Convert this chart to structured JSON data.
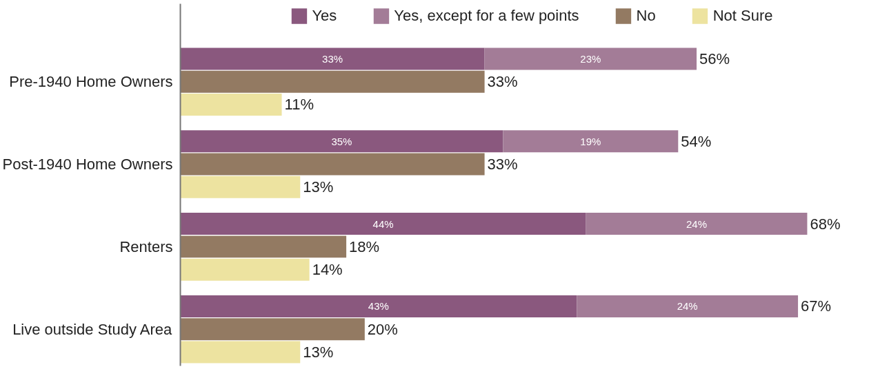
{
  "chart_data": {
    "type": "bar",
    "orientation": "horizontal",
    "stacked": true,
    "legend": "top",
    "grid": false,
    "categories": [
      null,
      "Pre-1940 Home Owners",
      null,
      null,
      "Post-1940 Home Owners",
      null,
      null,
      "Renters",
      null,
      null,
      "Live outside Study Area",
      null
    ],
    "series": [
      {
        "name": "Yes",
        "color": "#8a587e",
        "values": [
          33,
          null,
          null,
          35,
          null,
          null,
          44,
          null,
          null,
          43,
          null,
          null
        ],
        "value_labels": [
          "33%",
          null,
          null,
          "35%",
          null,
          null,
          "44%",
          null,
          null,
          "43%",
          null,
          null
        ]
      },
      {
        "name": "Yes, except for a few points",
        "color": "#a37c97",
        "values": [
          23,
          null,
          null,
          19,
          null,
          null,
          24,
          null,
          null,
          24,
          null,
          null
        ],
        "value_labels": [
          "23%",
          null,
          null,
          "19%",
          null,
          null,
          "24%",
          null,
          null,
          "24%",
          null,
          null
        ]
      },
      {
        "name": "No",
        "color": "#937a62",
        "values": [
          null,
          33,
          null,
          null,
          33,
          null,
          null,
          18,
          null,
          null,
          20,
          null
        ],
        "value_labels": [
          null,
          "33%",
          null,
          null,
          "33%",
          null,
          null,
          "18%",
          null,
          null,
          "20%",
          null
        ]
      },
      {
        "name": "Not Sure",
        "color": "#ede3a0",
        "values": [
          null,
          null,
          11,
          null,
          null,
          13,
          null,
          null,
          14,
          null,
          null,
          13
        ],
        "value_labels": [
          null,
          null,
          "11%",
          null,
          null,
          "13%",
          null,
          null,
          "14%",
          null,
          null,
          "13%"
        ]
      }
    ],
    "totals": [
      "56%",
      null,
      null,
      "54%",
      null,
      null,
      "68%",
      null,
      null,
      "67%",
      null,
      null
    ]
  }
}
